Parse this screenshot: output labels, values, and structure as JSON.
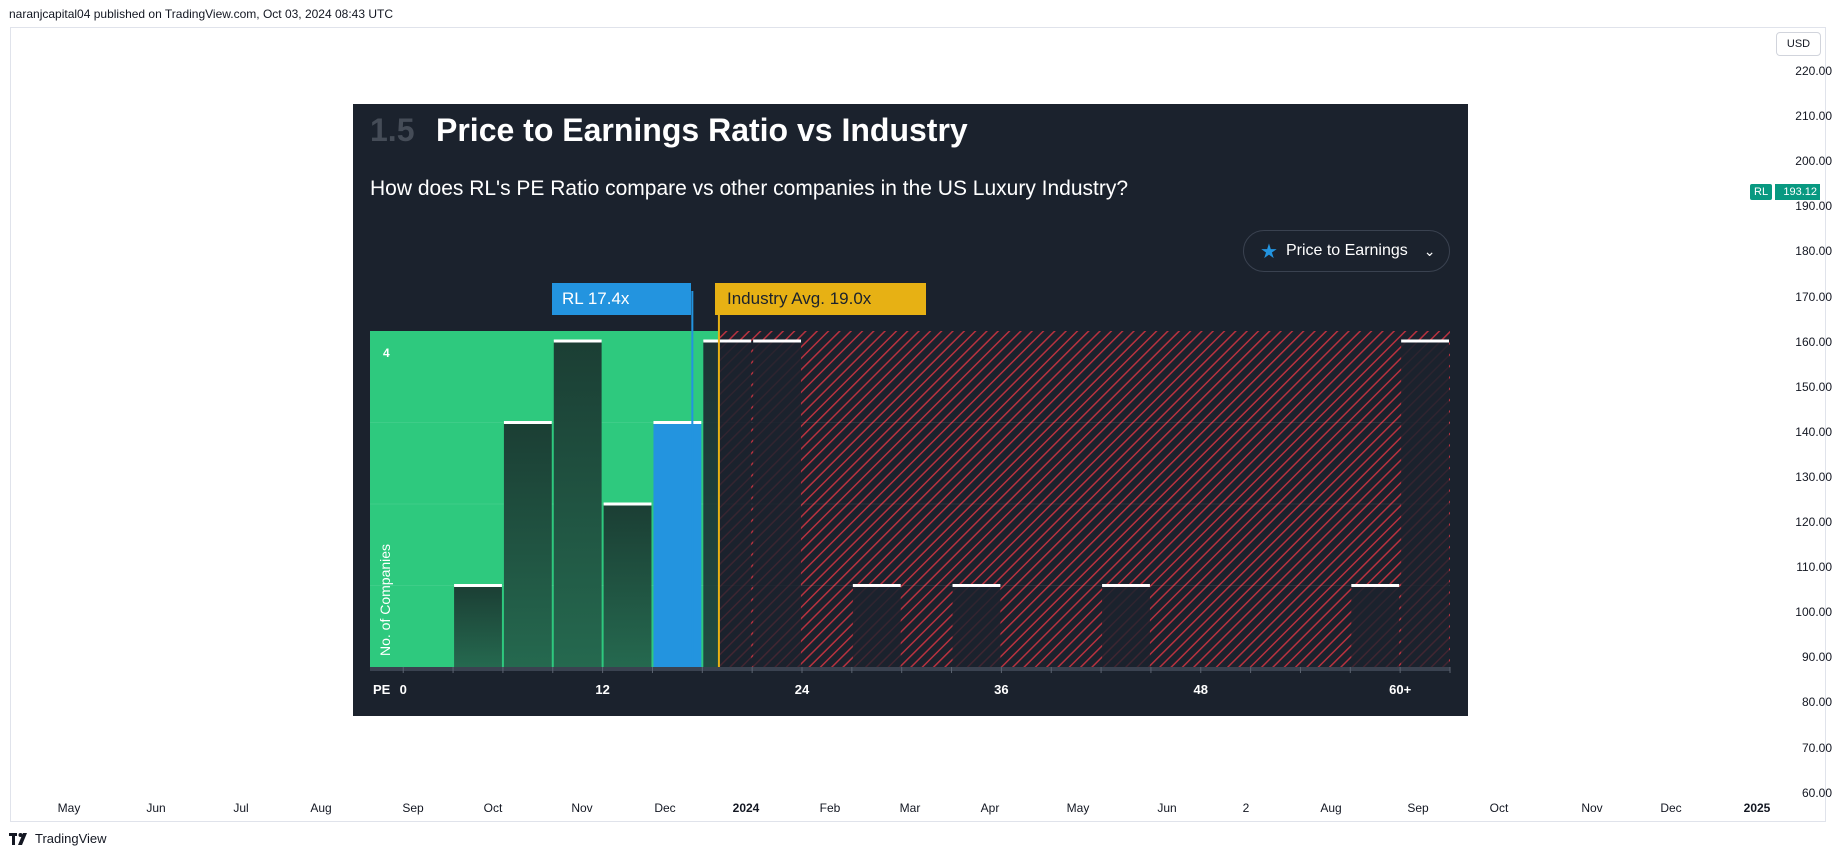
{
  "header": {
    "published": "naranjcapital04 published on TradingView.com, Oct 03, 2024 08:43 UTC"
  },
  "price_scale": {
    "currency": "USD",
    "ticks": [
      "220.00",
      "210.00",
      "200.00",
      "190.00",
      "180.00",
      "170.00",
      "160.00",
      "150.00",
      "140.00",
      "130.00",
      "120.00",
      "110.00",
      "100.00",
      "90.00",
      "80.00",
      "70.00",
      "60.00"
    ],
    "symbol": "RL",
    "last_price": "193.12"
  },
  "time_scale": {
    "labels": [
      {
        "t": "May",
        "b": false
      },
      {
        "t": "Jun",
        "b": false
      },
      {
        "t": "Jul",
        "b": false
      },
      {
        "t": "Aug",
        "b": false
      },
      {
        "t": "Sep",
        "b": false
      },
      {
        "t": "Oct",
        "b": false
      },
      {
        "t": "Nov",
        "b": false
      },
      {
        "t": "Dec",
        "b": false
      },
      {
        "t": "2024",
        "b": true
      },
      {
        "t": "Feb",
        "b": false
      },
      {
        "t": "Mar",
        "b": false
      },
      {
        "t": "Apr",
        "b": false
      },
      {
        "t": "May",
        "b": false
      },
      {
        "t": "Jun",
        "b": false
      },
      {
        "t": "2",
        "b": false
      },
      {
        "t": "Aug",
        "b": false
      },
      {
        "t": "Sep",
        "b": false
      },
      {
        "t": "Oct",
        "b": false
      },
      {
        "t": "Nov",
        "b": false
      },
      {
        "t": "Dec",
        "b": false
      },
      {
        "t": "2025",
        "b": true
      }
    ]
  },
  "footer": {
    "brand": "TradingView"
  },
  "panel": {
    "section_number": "1.5",
    "title": "Price to Earnings Ratio vs Industry",
    "subtitle": "How does RL's PE Ratio compare vs other companies in the US Luxury Industry?",
    "dropdown_label": "Price to Earnings",
    "rl_tag": "RL 17.4x",
    "industry_tag": "Industry Avg. 19.0x"
  },
  "colors": {
    "panel_bg": "#1b222d",
    "green_zone": "#2ec97e",
    "red_hatch": "#b8323f",
    "rl_bar": "#2394df",
    "industry_line": "#e7b114",
    "bar_dark": "#1e4a3c"
  },
  "chart_data": {
    "type": "bar",
    "xlabel": "PE",
    "ylabel": "No. of Companies",
    "ylim": [
      0,
      4
    ],
    "y_tick_label": "4",
    "x_tick_labels": [
      "0",
      "12",
      "24",
      "36",
      "48",
      "60+"
    ],
    "x_tick_values": [
      0,
      12,
      24,
      36,
      48,
      60
    ],
    "bin_width": 3,
    "x_range": [
      -2,
      63
    ],
    "bars": [
      {
        "x0": 3,
        "value": 1
      },
      {
        "x0": 6,
        "value": 3
      },
      {
        "x0": 9,
        "value": 4
      },
      {
        "x0": 12,
        "value": 2
      },
      {
        "x0": 15,
        "value": 3,
        "highlight": "RL"
      },
      {
        "x0": 18,
        "value": 4
      },
      {
        "x0": 21,
        "value": 4
      },
      {
        "x0": 27,
        "value": 1
      },
      {
        "x0": 33,
        "value": 1
      },
      {
        "x0": 42,
        "value": 1
      },
      {
        "x0": 57,
        "value": 1
      },
      {
        "x0": 60,
        "value": 4
      }
    ],
    "rl_pe": 17.4,
    "industry_avg_pe": 19.0
  }
}
